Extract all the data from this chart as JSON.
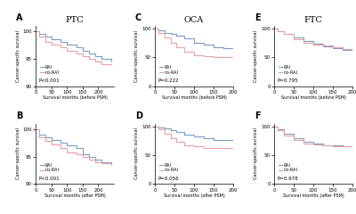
{
  "col_titles": [
    "PTC",
    "OCA",
    "FTC"
  ],
  "panel_labels": [
    "A",
    "C",
    "E",
    "B",
    "D",
    "F"
  ],
  "p_values": [
    "P<0.001",
    "P=0.222",
    "P=0.795",
    "P<0.001",
    "P=0.056",
    "P=0.978"
  ],
  "xlabel_before": "Survival months (before PSM)",
  "xlabel_after": "Survival months (after PSM)",
  "ylabel": "Cancer-specific survival",
  "rai_color": "#7b9dc9",
  "norai_color": "#e8a0a0",
  "background": "#ffffff",
  "panels": [
    {
      "key": "A",
      "rai_x": [
        0,
        10,
        30,
        50,
        80,
        100,
        130,
        150,
        170,
        190,
        210,
        240
      ],
      "rai_y": [
        100,
        99.5,
        99.0,
        98.5,
        98.0,
        97.5,
        97.0,
        96.5,
        96.0,
        95.5,
        95.0,
        94.5
      ],
      "norai_x": [
        0,
        10,
        30,
        50,
        80,
        100,
        130,
        150,
        170,
        190,
        210,
        240
      ],
      "norai_y": [
        100,
        99.0,
        98.0,
        97.5,
        97.0,
        96.5,
        96.0,
        95.5,
        95.0,
        94.5,
        94.0,
        93.8
      ],
      "ylim": [
        90,
        101
      ],
      "xlim": [
        0,
        250
      ],
      "yticks": [
        90,
        95,
        100
      ],
      "xticks": [
        0,
        50,
        100,
        150,
        200
      ],
      "row": 0,
      "col": 0
    },
    {
      "key": "C",
      "rai_x": [
        0,
        10,
        25,
        40,
        55,
        75,
        100,
        125,
        150,
        175,
        200
      ],
      "rai_y": [
        100,
        97,
        93,
        90,
        87,
        83,
        76,
        72,
        68,
        66,
        65
      ],
      "norai_x": [
        0,
        10,
        25,
        40,
        55,
        75,
        100,
        125,
        150,
        175,
        200
      ],
      "norai_y": [
        100,
        93,
        84,
        76,
        68,
        60,
        54,
        52,
        51,
        51,
        51
      ],
      "ylim": [
        0,
        105
      ],
      "xlim": [
        0,
        200
      ],
      "yticks": [
        0,
        50,
        100
      ],
      "xticks": [
        0,
        50,
        100,
        150,
        200
      ],
      "row": 0,
      "col": 1
    },
    {
      "key": "E",
      "rai_x": [
        0,
        10,
        25,
        50,
        75,
        100,
        125,
        150,
        175,
        200
      ],
      "rai_y": [
        100,
        96,
        91,
        84,
        78,
        73,
        69,
        66,
        63,
        60
      ],
      "norai_x": [
        0,
        10,
        25,
        50,
        75,
        100,
        125,
        150,
        175,
        200
      ],
      "norai_y": [
        100,
        96,
        90,
        82,
        76,
        72,
        70,
        68,
        65,
        63
      ],
      "ylim": [
        0,
        105
      ],
      "xlim": [
        0,
        200
      ],
      "yticks": [
        0,
        50,
        100
      ],
      "xticks": [
        0,
        50,
        100,
        150,
        200
      ],
      "row": 0,
      "col": 2
    },
    {
      "key": "B",
      "rai_x": [
        0,
        10,
        30,
        50,
        80,
        100,
        130,
        150,
        170,
        190,
        210,
        240
      ],
      "rai_y": [
        100,
        99.0,
        98.5,
        98.0,
        97.5,
        97.0,
        96.5,
        95.5,
        95.0,
        94.5,
        94.0,
        93.5
      ],
      "norai_x": [
        0,
        10,
        30,
        50,
        80,
        100,
        130,
        150,
        170,
        190,
        210,
        240
      ],
      "norai_y": [
        100,
        98.5,
        97.8,
        97.2,
        96.5,
        95.8,
        95.5,
        95.0,
        94.5,
        94.0,
        93.8,
        93.5
      ],
      "ylim": [
        90,
        101
      ],
      "xlim": [
        0,
        250
      ],
      "yticks": [
        90,
        95,
        100
      ],
      "xticks": [
        0,
        50,
        100,
        150,
        200
      ],
      "row": 1,
      "col": 0
    },
    {
      "key": "D",
      "rai_x": [
        0,
        10,
        25,
        40,
        55,
        75,
        100,
        125,
        150,
        175,
        200
      ],
      "rai_y": [
        100,
        98,
        96,
        93,
        90,
        86,
        82,
        79,
        77,
        76,
        76
      ],
      "norai_x": [
        0,
        10,
        25,
        40,
        55,
        75,
        100,
        125,
        150,
        175,
        200
      ],
      "norai_y": [
        100,
        95,
        87,
        79,
        73,
        68,
        65,
        63,
        63,
        63,
        63
      ],
      "ylim": [
        0,
        105
      ],
      "xlim": [
        0,
        200
      ],
      "yticks": [
        0,
        50,
        100
      ],
      "xticks": [
        0,
        50,
        100,
        150,
        200
      ],
      "row": 1,
      "col": 1
    },
    {
      "key": "F",
      "rai_x": [
        0,
        10,
        25,
        50,
        75,
        100,
        125,
        150,
        175,
        200
      ],
      "rai_y": [
        100,
        95,
        88,
        80,
        74,
        71,
        68,
        67,
        66,
        66
      ],
      "norai_x": [
        0,
        10,
        25,
        50,
        75,
        100,
        125,
        150,
        175,
        200
      ],
      "norai_y": [
        100,
        94,
        85,
        76,
        71,
        69,
        67,
        66,
        65,
        65
      ],
      "ylim": [
        0,
        105
      ],
      "xlim": [
        0,
        200
      ],
      "yticks": [
        0,
        50,
        100
      ],
      "xticks": [
        0,
        50,
        100,
        150,
        200
      ],
      "row": 1,
      "col": 2
    }
  ]
}
